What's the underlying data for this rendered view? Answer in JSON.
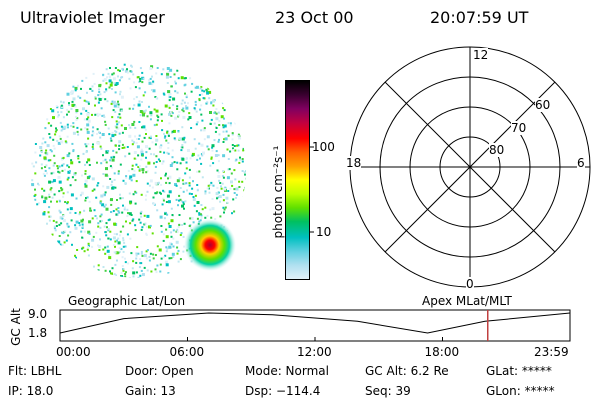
{
  "header": {
    "instrument": "Ultraviolet Imager",
    "date": "23 Oct 00",
    "time": "20:07:59 UT"
  },
  "colorbar": {
    "label": "photon cm⁻²s⁻¹",
    "ticks": [
      "100",
      "10"
    ],
    "colors": [
      "#000000",
      "#3a0030",
      "#800060",
      "#c00040",
      "#ff0000",
      "#ff6000",
      "#ffa000",
      "#ffff00",
      "#c0ff00",
      "#60e000",
      "#00c060",
      "#00c0c0",
      "#60d0e0",
      "#b0e0f0",
      "#e0f0f8"
    ]
  },
  "polar": {
    "mlt_labels": {
      "top": "12",
      "left": "18",
      "right": "6",
      "bottom": "0"
    },
    "lat_labels": [
      "60",
      "70",
      "80"
    ]
  },
  "strip": {
    "left_label": "Geographic Lat/Lon",
    "right_label": "Apex MLat/MLT",
    "y_axis_label": "GC Alt",
    "y_ticks": [
      "9.0",
      "1.8"
    ],
    "x_ticks": [
      "00:00",
      "06:00",
      "12:00",
      "18:00",
      "23:59"
    ],
    "curve": {
      "x": [
        0,
        3,
        7,
        10,
        14,
        17.3,
        20,
        24
      ],
      "y": [
        1.8,
        7.0,
        9.0,
        8.4,
        6.0,
        1.8,
        6.0,
        9.0
      ]
    },
    "cursor_hour": 20.13
  },
  "footer": {
    "col1": [
      "Flt: LBHL",
      "IP: 18.0"
    ],
    "col2": [
      "Door: Open",
      "Gain: 13"
    ],
    "col3": [
      "Mode: Normal",
      "Dsp: −114.4"
    ],
    "col4": [
      "GC Alt: 6.2 Re",
      "Seq: 39"
    ],
    "col5": [
      "GLat: *****",
      "GLon: *****"
    ]
  }
}
